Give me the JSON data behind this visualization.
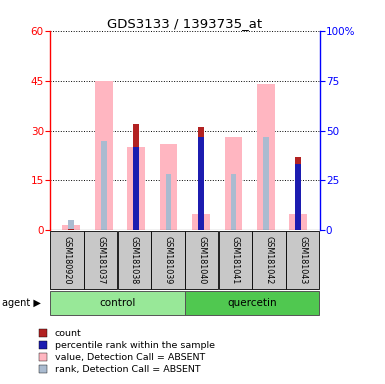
{
  "title": "GDS3133 / 1393735_at",
  "samples": [
    "GSM180920",
    "GSM181037",
    "GSM181038",
    "GSM181039",
    "GSM181040",
    "GSM181041",
    "GSM181042",
    "GSM181043"
  ],
  "red_count": [
    0.5,
    0,
    32,
    0,
    31,
    0,
    0,
    22
  ],
  "blue_rank": [
    0,
    0,
    25,
    0,
    28,
    0,
    0,
    20
  ],
  "pink_value": [
    1.5,
    45,
    25,
    26,
    5,
    28,
    44,
    5
  ],
  "lightblue_rank": [
    3,
    27,
    25,
    17,
    5,
    17,
    28,
    5
  ],
  "ylim_left": [
    0,
    60
  ],
  "ylim_right": [
    0,
    100
  ],
  "yticks_left": [
    0,
    15,
    30,
    45,
    60
  ],
  "yticks_right": [
    0,
    25,
    50,
    75,
    100
  ],
  "color_red": "#B22222",
  "color_blue": "#1C1CB0",
  "color_pink": "#FFB6C1",
  "color_lightblue": "#AABBD0",
  "color_control_bg": "#98E898",
  "color_quercetin_bg": "#50C850",
  "color_sample_bg": "#C8C8C8",
  "legend_items": [
    "count",
    "percentile rank within the sample",
    "value, Detection Call = ABSENT",
    "rank, Detection Call = ABSENT"
  ],
  "legend_colors": [
    "#B22222",
    "#1C1CB0",
    "#FFB6C1",
    "#AABBD0"
  ]
}
